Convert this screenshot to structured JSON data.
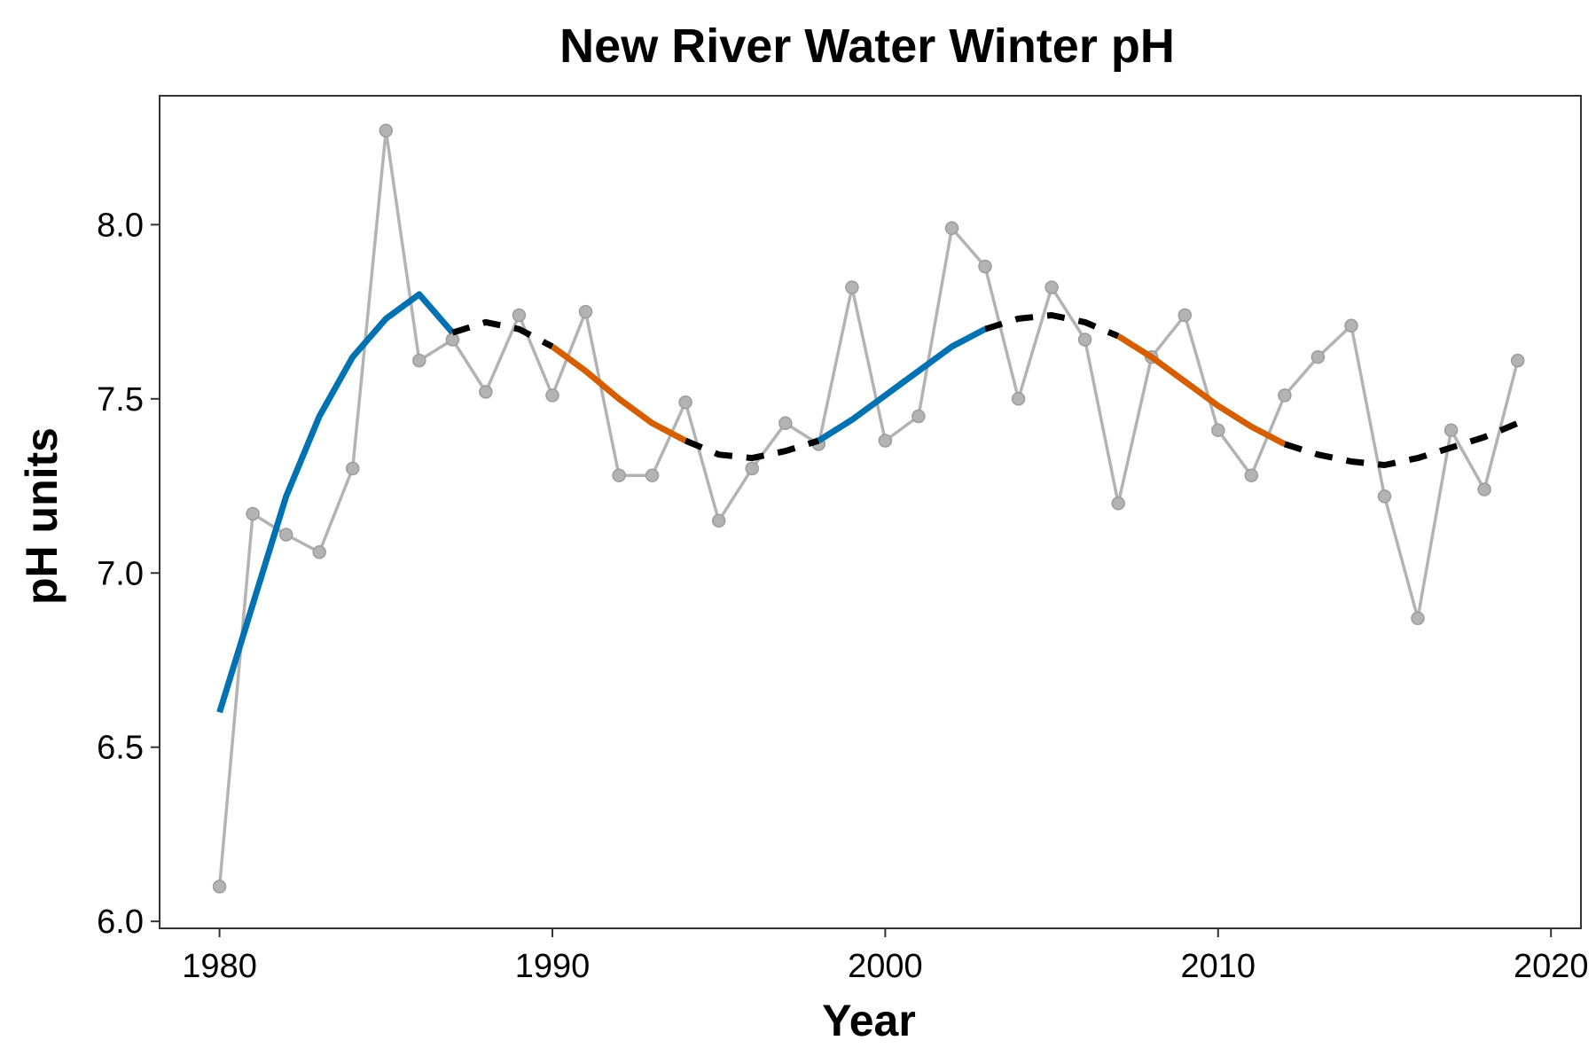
{
  "chart_data": {
    "type": "line",
    "title": "New River Water Winter pH",
    "xlabel": "Year",
    "ylabel": "pH units",
    "xlim": [
      1978.2,
      2020.9
    ],
    "ylim": [
      5.98,
      8.37
    ],
    "x_ticks": [
      1980,
      1990,
      2000,
      2010,
      2020
    ],
    "y_ticks": [
      6.0,
      6.5,
      7.0,
      7.5,
      8.0
    ],
    "y_tick_labels": [
      "6.0",
      "6.5",
      "7.0",
      "7.5",
      "8.0"
    ],
    "grid": false,
    "legend": "none",
    "colors": {
      "observed": "#b3b3b3",
      "increasing": "#0072b2",
      "decreasing": "#d55e00",
      "no_change": "#000000"
    },
    "observed": {
      "x": [
        1980,
        1981,
        1982,
        1983,
        1984,
        1985,
        1986,
        1987,
        1988,
        1989,
        1990,
        1991,
        1992,
        1993,
        1994,
        1995,
        1996,
        1997,
        1998,
        1999,
        2000,
        2001,
        2002,
        2003,
        2004,
        2005,
        2006,
        2007,
        2008,
        2009,
        2010,
        2011,
        2012,
        2013,
        2014,
        2015,
        2016,
        2017,
        2018,
        2019
      ],
      "y": [
        6.1,
        7.17,
        7.11,
        7.06,
        7.3,
        8.27,
        7.61,
        7.67,
        7.52,
        7.74,
        7.51,
        7.75,
        7.28,
        7.28,
        7.49,
        7.15,
        7.3,
        7.43,
        7.37,
        7.82,
        7.38,
        7.45,
        7.99,
        7.88,
        7.5,
        7.82,
        7.67,
        7.2,
        7.62,
        7.74,
        7.41,
        7.28,
        7.51,
        7.62,
        7.71,
        7.22,
        6.87,
        7.41,
        7.24,
        7.61
      ]
    },
    "trend_segments": [
      {
        "kind": "increasing",
        "x": [
          1980,
          1981,
          1982,
          1983,
          1984,
          1985,
          1986,
          1987
        ],
        "y": [
          6.6,
          6.91,
          7.22,
          7.45,
          7.62,
          7.73,
          7.8,
          7.69
        ]
      },
      {
        "kind": "no_change",
        "x": [
          1987,
          1988,
          1989,
          1990
        ],
        "y": [
          7.69,
          7.72,
          7.7,
          7.65
        ]
      },
      {
        "kind": "decreasing",
        "x": [
          1990,
          1991,
          1992,
          1993,
          1994
        ],
        "y": [
          7.65,
          7.58,
          7.5,
          7.43,
          7.38
        ]
      },
      {
        "kind": "no_change",
        "x": [
          1994,
          1995,
          1996,
          1997,
          1998
        ],
        "y": [
          7.38,
          7.34,
          7.33,
          7.35,
          7.38
        ]
      },
      {
        "kind": "increasing",
        "x": [
          1998,
          1999,
          2000,
          2001,
          2002,
          2003
        ],
        "y": [
          7.38,
          7.44,
          7.51,
          7.58,
          7.65,
          7.7
        ]
      },
      {
        "kind": "no_change",
        "x": [
          2003,
          2004,
          2005,
          2006,
          2007
        ],
        "y": [
          7.7,
          7.73,
          7.74,
          7.72,
          7.68
        ]
      },
      {
        "kind": "decreasing",
        "x": [
          2007,
          2008,
          2009,
          2010,
          2011,
          2012
        ],
        "y": [
          7.68,
          7.62,
          7.55,
          7.48,
          7.42,
          7.37
        ]
      },
      {
        "kind": "no_change",
        "x": [
          2012,
          2013,
          2014,
          2015,
          2016,
          2017,
          2018,
          2019
        ],
        "y": [
          7.37,
          7.34,
          7.32,
          7.31,
          7.33,
          7.36,
          7.39,
          7.43
        ]
      }
    ]
  }
}
